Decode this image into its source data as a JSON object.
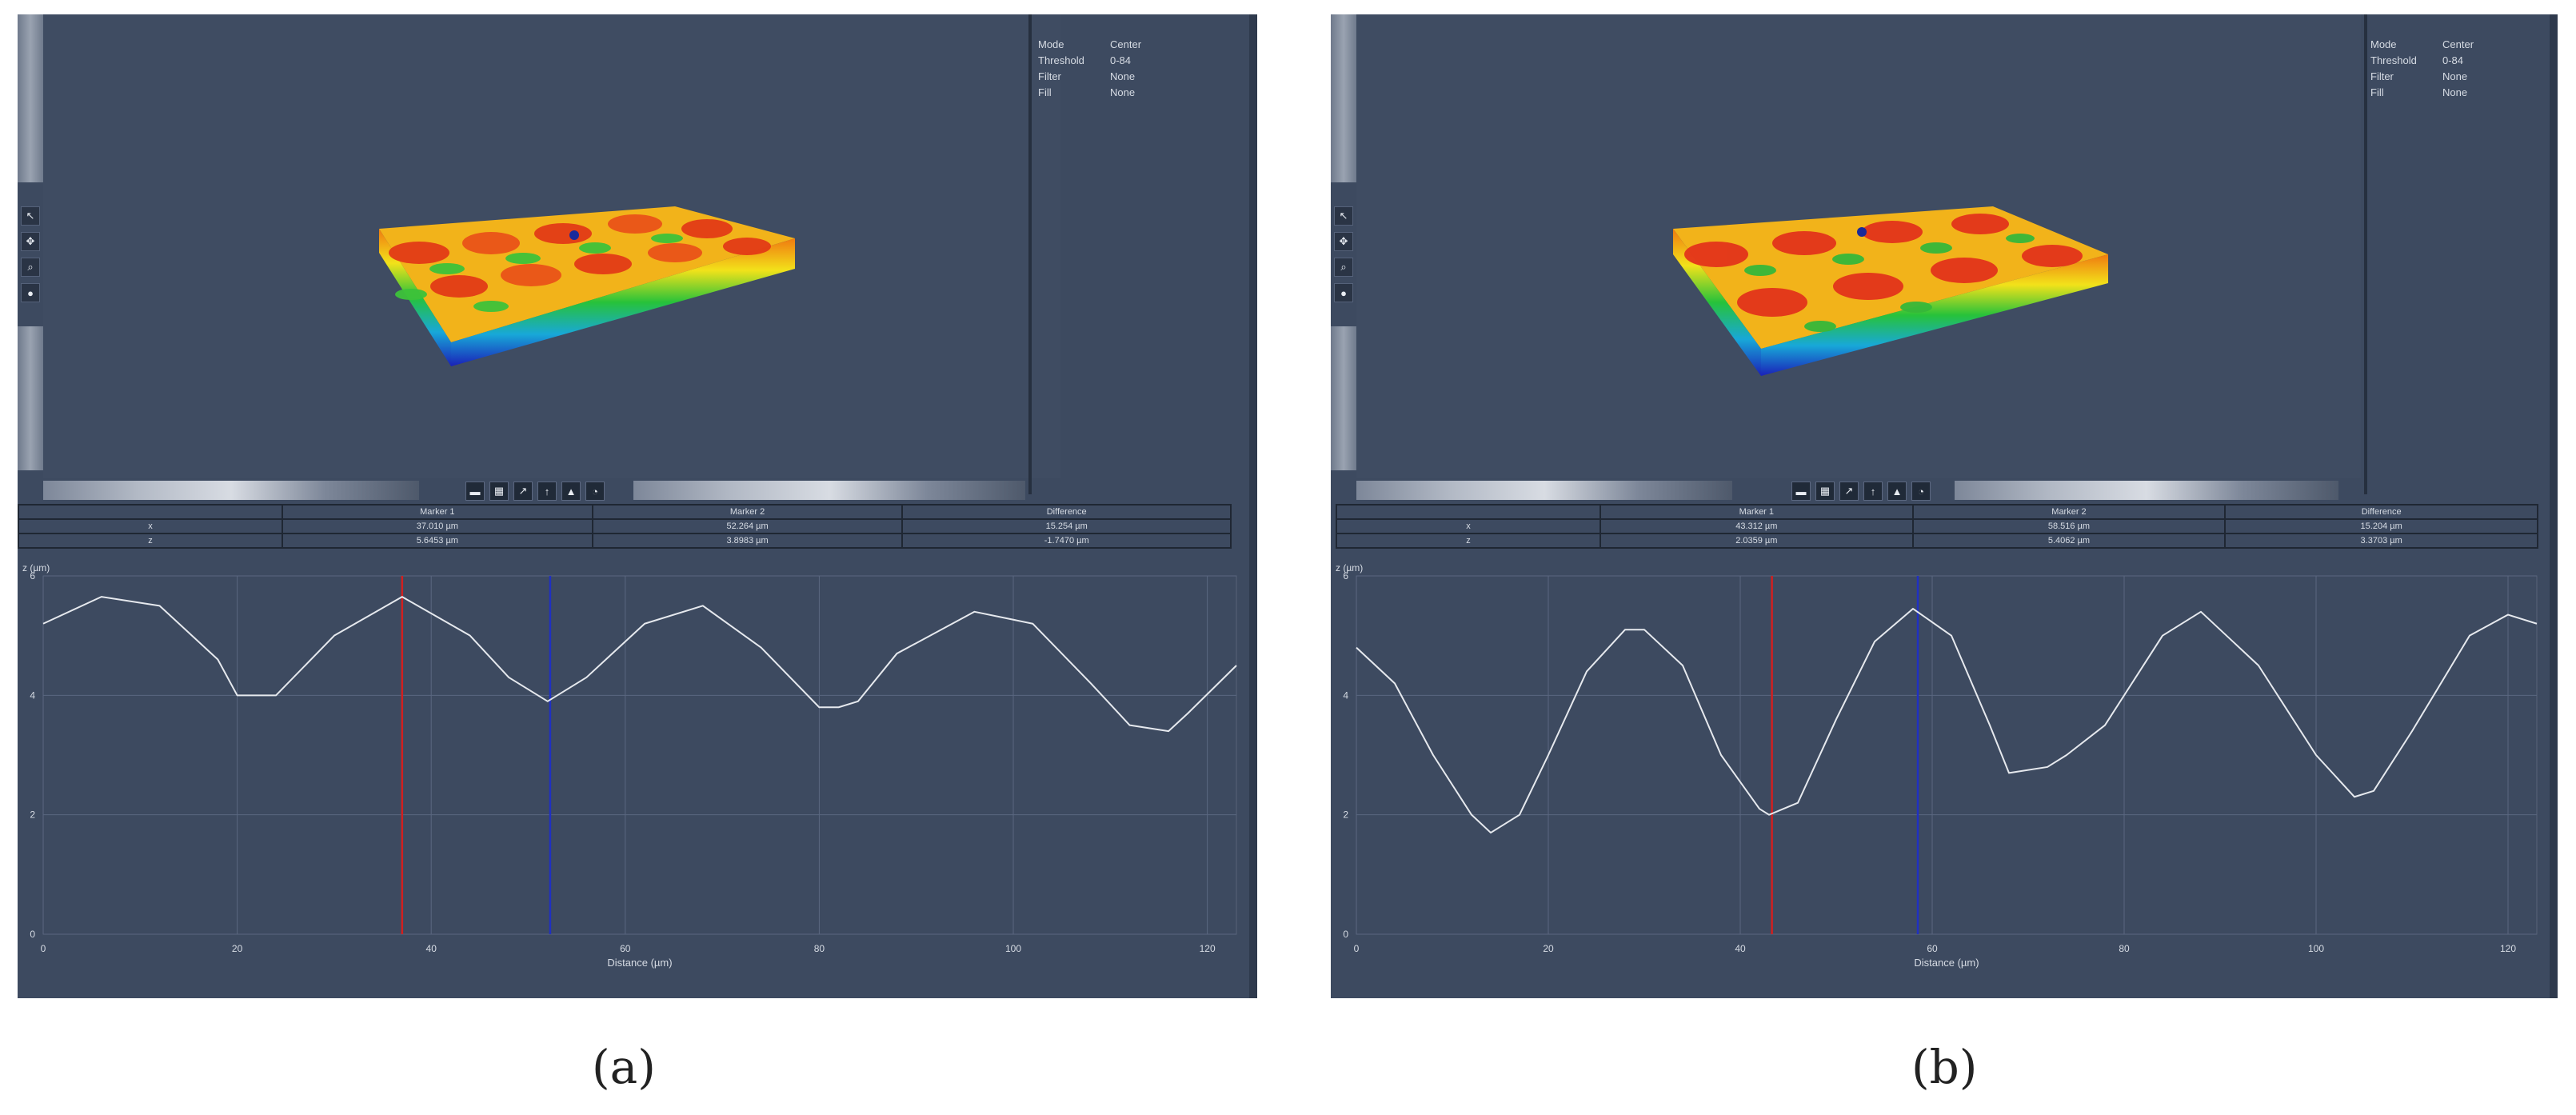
{
  "panels": [
    {
      "caption": "(a)",
      "info": [
        {
          "k": "Mode",
          "v": "Center"
        },
        {
          "k": "Threshold",
          "v": "0-84"
        },
        {
          "k": "Filter",
          "v": "None"
        },
        {
          "k": "Fill",
          "v": "None"
        }
      ],
      "table": {
        "headers": [
          "",
          "Marker 1",
          "Marker 2",
          "Difference"
        ],
        "rows": [
          [
            "x",
            "37.010 µm",
            "52.264 µm",
            "15.254 µm"
          ],
          [
            "z",
            "5.6453 µm",
            "3.8983 µm",
            "-1.7470 µm"
          ]
        ]
      },
      "chart_data": {
        "type": "line",
        "ylabel": "z (µm)",
        "xlabel": "Distance (µm)",
        "xlim": [
          0,
          123
        ],
        "ylim": [
          0,
          6
        ],
        "xticks": [
          "0",
          "20",
          "40",
          "60",
          "80",
          "100",
          "120"
        ],
        "yticks": [
          "0",
          "2",
          "4",
          "6"
        ],
        "series": [
          {
            "x": [
              0,
              6,
              12,
              18,
              20,
              24,
              30,
              37,
              44,
              48,
              52,
              56,
              62,
              68,
              74,
              80,
              82,
              84,
              88,
              96,
              102,
              108,
              112,
              116,
              118,
              123
            ],
            "y": [
              5.2,
              5.65,
              5.5,
              4.6,
              4.0,
              4.0,
              5.0,
              5.65,
              5.0,
              4.3,
              3.9,
              4.3,
              5.2,
              5.5,
              4.8,
              3.8,
              3.8,
              3.9,
              4.7,
              5.4,
              5.2,
              4.2,
              3.5,
              3.4,
              3.7,
              4.5
            ]
          }
        ],
        "markers": [
          {
            "x": 37.0,
            "color": "#d02020"
          },
          {
            "x": 52.26,
            "color": "#2030c0"
          }
        ]
      }
    },
    {
      "caption": "(b)",
      "info": [
        {
          "k": "Mode",
          "v": "Center"
        },
        {
          "k": "Threshold",
          "v": "0-84"
        },
        {
          "k": "Filter",
          "v": "None"
        },
        {
          "k": "Fill",
          "v": "None"
        }
      ],
      "table": {
        "headers": [
          "",
          "Marker 1",
          "Marker 2",
          "Difference"
        ],
        "rows": [
          [
            "x",
            "43.312 µm",
            "58.516 µm",
            "15.204 µm"
          ],
          [
            "z",
            "2.0359 µm",
            "5.4062 µm",
            "3.3703 µm"
          ]
        ]
      },
      "chart_data": {
        "type": "line",
        "ylabel": "z (µm)",
        "xlabel": "Distance (µm)",
        "xlim": [
          0,
          123
        ],
        "ylim": [
          0,
          6
        ],
        "xticks": [
          "0",
          "20",
          "40",
          "60",
          "80",
          "100",
          "120"
        ],
        "yticks": [
          "0",
          "2",
          "4",
          "6"
        ],
        "series": [
          {
            "x": [
              0,
              4,
              8,
              12,
              14,
              17,
              20,
              24,
              28,
              30,
              34,
              38,
              42,
              43,
              46,
              50,
              54,
              58,
              62,
              66,
              68,
              72,
              74,
              78,
              84,
              88,
              94,
              100,
              104,
              106,
              110,
              116,
              120,
              123
            ],
            "y": [
              4.8,
              4.2,
              3.0,
              2.0,
              1.7,
              2.0,
              3.0,
              4.4,
              5.1,
              5.1,
              4.5,
              3.0,
              2.1,
              2.0,
              2.2,
              3.6,
              4.9,
              5.45,
              5.0,
              3.5,
              2.7,
              2.8,
              3.0,
              3.5,
              5.0,
              5.4,
              4.5,
              3.0,
              2.3,
              2.4,
              3.4,
              5.0,
              5.35,
              5.2
            ]
          }
        ],
        "markers": [
          {
            "x": 43.3,
            "color": "#d02020"
          },
          {
            "x": 58.5,
            "color": "#2030c0"
          }
        ]
      }
    }
  ],
  "toolbar_icons": [
    "ruler-icon",
    "grid-icon",
    "pointer-icon",
    "arrow-icon",
    "shape-icon",
    "settings-icon"
  ]
}
